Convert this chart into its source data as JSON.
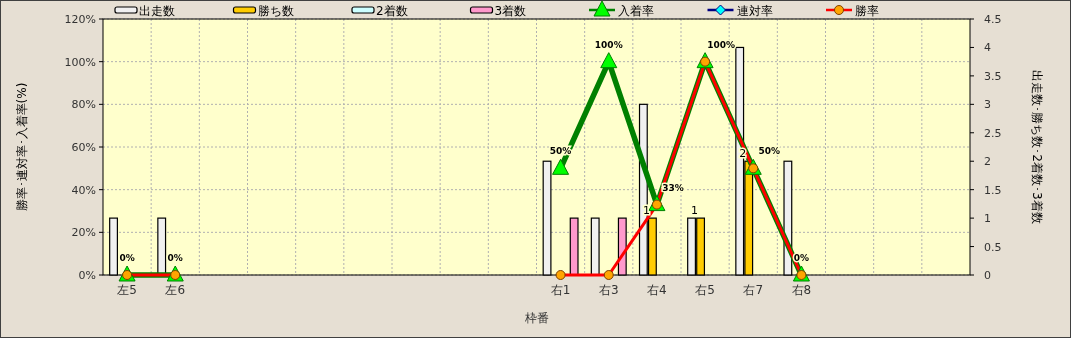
{
  "chart_data": {
    "type": "bar",
    "xlabel": "枠番",
    "ylabel": "勝率･連対率･入着率(%)",
    "y2label": "出走数･勝ち数･2着数･3着数",
    "categories": [
      "左5",
      "左6",
      null,
      null,
      null,
      null,
      null,
      null,
      null,
      "右1",
      "右3",
      "右4",
      "右5",
      "右7",
      "右8",
      null,
      null,
      null
    ],
    "series": [
      {
        "name": "出走数",
        "axis": "y2",
        "color": "#f0f0f0",
        "values": [
          1,
          1,
          null,
          null,
          null,
          null,
          null,
          null,
          null,
          2,
          1,
          3,
          1,
          4,
          2,
          null,
          null,
          null
        ]
      },
      {
        "name": "勝ち数",
        "axis": "y2",
        "color": "#ffcc00",
        "values": [
          null,
          null,
          null,
          null,
          null,
          null,
          null,
          null,
          null,
          null,
          null,
          1,
          1,
          2,
          null,
          null,
          null,
          null
        ],
        "value_labels": [
          null,
          null,
          null,
          null,
          null,
          null,
          null,
          null,
          null,
          null,
          null,
          "1",
          "1",
          "2",
          null,
          null,
          null,
          null
        ]
      },
      {
        "name": "2着数",
        "axis": "y2",
        "color": "#ccffff",
        "values": [
          null,
          null,
          null,
          null,
          null,
          null,
          null,
          null,
          null,
          null,
          null,
          null,
          null,
          null,
          null,
          null,
          null,
          null
        ]
      },
      {
        "name": "3着数",
        "axis": "y2",
        "color": "#ff99cc",
        "values": [
          null,
          null,
          null,
          null,
          null,
          null,
          null,
          null,
          null,
          1,
          1,
          null,
          null,
          null,
          null,
          null,
          null,
          null
        ]
      },
      {
        "name": "入着率",
        "type": "line",
        "color": "#008000",
        "marker": "triangle",
        "values": [
          0,
          0,
          null,
          null,
          null,
          null,
          null,
          null,
          null,
          50,
          100,
          33,
          100,
          50,
          0,
          null,
          null,
          null
        ],
        "value_labels": [
          "0%",
          "0%",
          null,
          null,
          null,
          null,
          null,
          null,
          null,
          "50%",
          "100%",
          "33%",
          "100%",
          "50%",
          "0%",
          null,
          null,
          null
        ]
      },
      {
        "name": "連対率",
        "type": "line",
        "color": "#000080",
        "marker": "diamond",
        "values": [
          null,
          null,
          null,
          null,
          null,
          null,
          null,
          null,
          null,
          null,
          null,
          null,
          null,
          null,
          null,
          null,
          null,
          null
        ]
      },
      {
        "name": "勝率",
        "type": "line",
        "color": "#ff0000",
        "marker": "circle",
        "values": [
          0,
          0,
          null,
          null,
          null,
          null,
          null,
          null,
          null,
          0,
          0,
          33,
          100,
          50,
          0,
          null,
          null,
          null
        ]
      }
    ],
    "ylim": [
      0,
      120
    ],
    "yticks": [
      {
        "value": 0,
        "label": "0%"
      },
      {
        "value": 20,
        "label": "20%"
      },
      {
        "value": 40,
        "label": "40%"
      },
      {
        "value": 60,
        "label": "60%"
      },
      {
        "value": 80,
        "label": "80%"
      },
      {
        "value": 100,
        "label": "100%"
      },
      {
        "value": 120,
        "label": "120%"
      }
    ],
    "y2lim": [
      0,
      4.5
    ],
    "y2ticks": [
      0,
      0.5,
      1,
      1.5,
      2,
      2.5,
      3,
      3.5,
      4,
      4.5
    ],
    "grid": true,
    "legend": "top"
  }
}
